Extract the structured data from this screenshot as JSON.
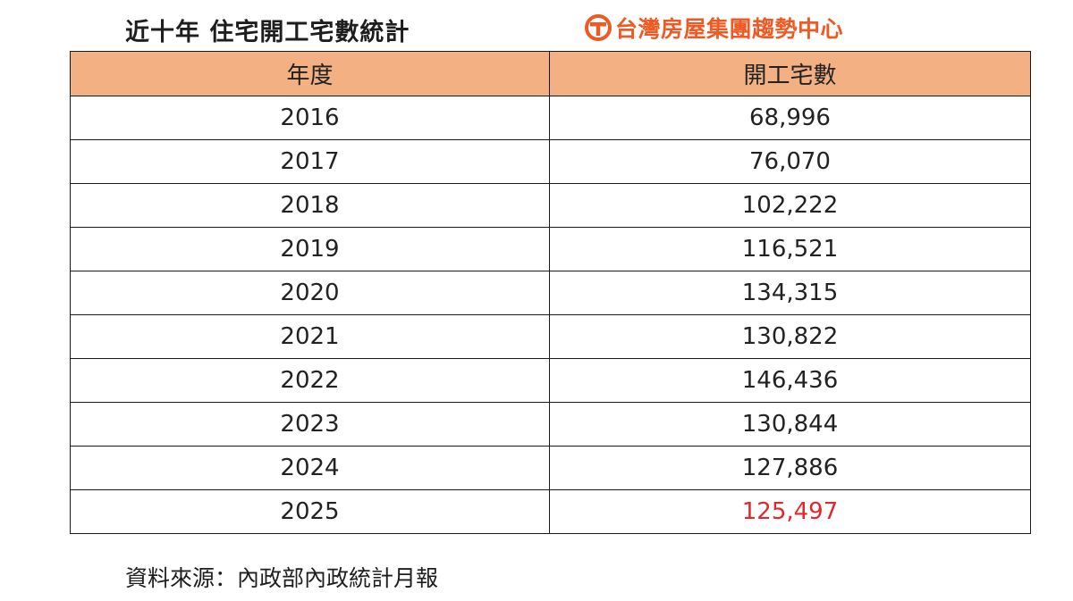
{
  "title": "近十年  住宅開工宅數統計",
  "brand": {
    "name": "台灣房屋集團趨勢中心",
    "logo_icon": "taiwan-realty-logo-icon",
    "accent_color": "#ee5a24"
  },
  "table": {
    "header_color": "#f2b083",
    "columns": [
      "年度",
      "開工宅數"
    ],
    "rows": [
      {
        "year": "2016",
        "count": "68,996"
      },
      {
        "year": "2017",
        "count": "76,070"
      },
      {
        "year": "2018",
        "count": "102,222"
      },
      {
        "year": "2019",
        "count": "116,521"
      },
      {
        "year": "2020",
        "count": "134,315"
      },
      {
        "year": "2021",
        "count": "130,822"
      },
      {
        "year": "2022",
        "count": "146,436"
      },
      {
        "year": "2023",
        "count": "130,844"
      },
      {
        "year": "2024",
        "count": "127,886"
      },
      {
        "year": "2025",
        "count": "125,497"
      }
    ],
    "highlight_color": "#e0282e"
  },
  "source": "資料來源：內政部內政統計月報"
}
